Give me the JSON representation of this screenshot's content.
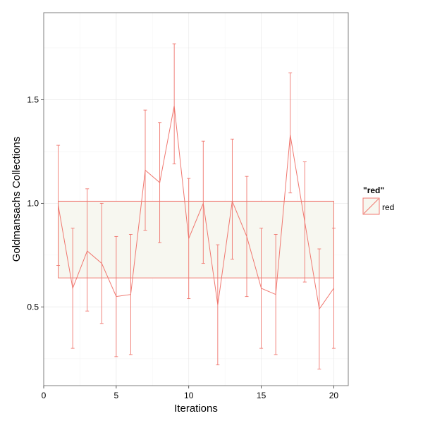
{
  "chart_data": {
    "type": "line",
    "xlabel": "Iterations",
    "ylabel": "Goldmansachs Collections",
    "xlim": [
      0,
      21
    ],
    "ylim": [
      0.12,
      1.92
    ],
    "x_ticks": [
      0,
      5,
      10,
      15,
      20
    ],
    "y_ticks": [
      0.5,
      1.0,
      1.5
    ],
    "grid": true,
    "legend": {
      "title": "\"red\"",
      "placement": "right",
      "entries": [
        "red"
      ]
    },
    "band": {
      "ymin": 0.64,
      "ymax": 1.01,
      "fill": "#f7f7f0"
    },
    "color": "#f0776f",
    "series": [
      {
        "name": "red",
        "x": [
          1,
          2,
          3,
          4,
          5,
          6,
          7,
          8,
          9,
          10,
          11,
          12,
          13,
          14,
          15,
          16,
          17,
          18,
          19,
          20
        ],
        "y": [
          0.99,
          0.59,
          0.77,
          0.71,
          0.55,
          0.56,
          1.16,
          1.1,
          1.47,
          0.83,
          1.0,
          0.51,
          1.01,
          0.84,
          0.59,
          0.56,
          1.33,
          0.91,
          0.49,
          0.59
        ],
        "ymin": [
          0.7,
          0.3,
          0.48,
          0.42,
          0.26,
          0.27,
          0.87,
          0.81,
          1.19,
          0.54,
          0.71,
          0.22,
          0.73,
          0.55,
          0.3,
          0.27,
          1.05,
          0.62,
          0.2,
          0.3
        ],
        "ymax": [
          1.28,
          0.88,
          1.07,
          1.0,
          0.84,
          0.85,
          1.45,
          1.39,
          1.77,
          1.12,
          1.3,
          0.8,
          1.31,
          1.13,
          0.88,
          0.85,
          1.63,
          1.2,
          0.78,
          0.88
        ]
      }
    ]
  }
}
